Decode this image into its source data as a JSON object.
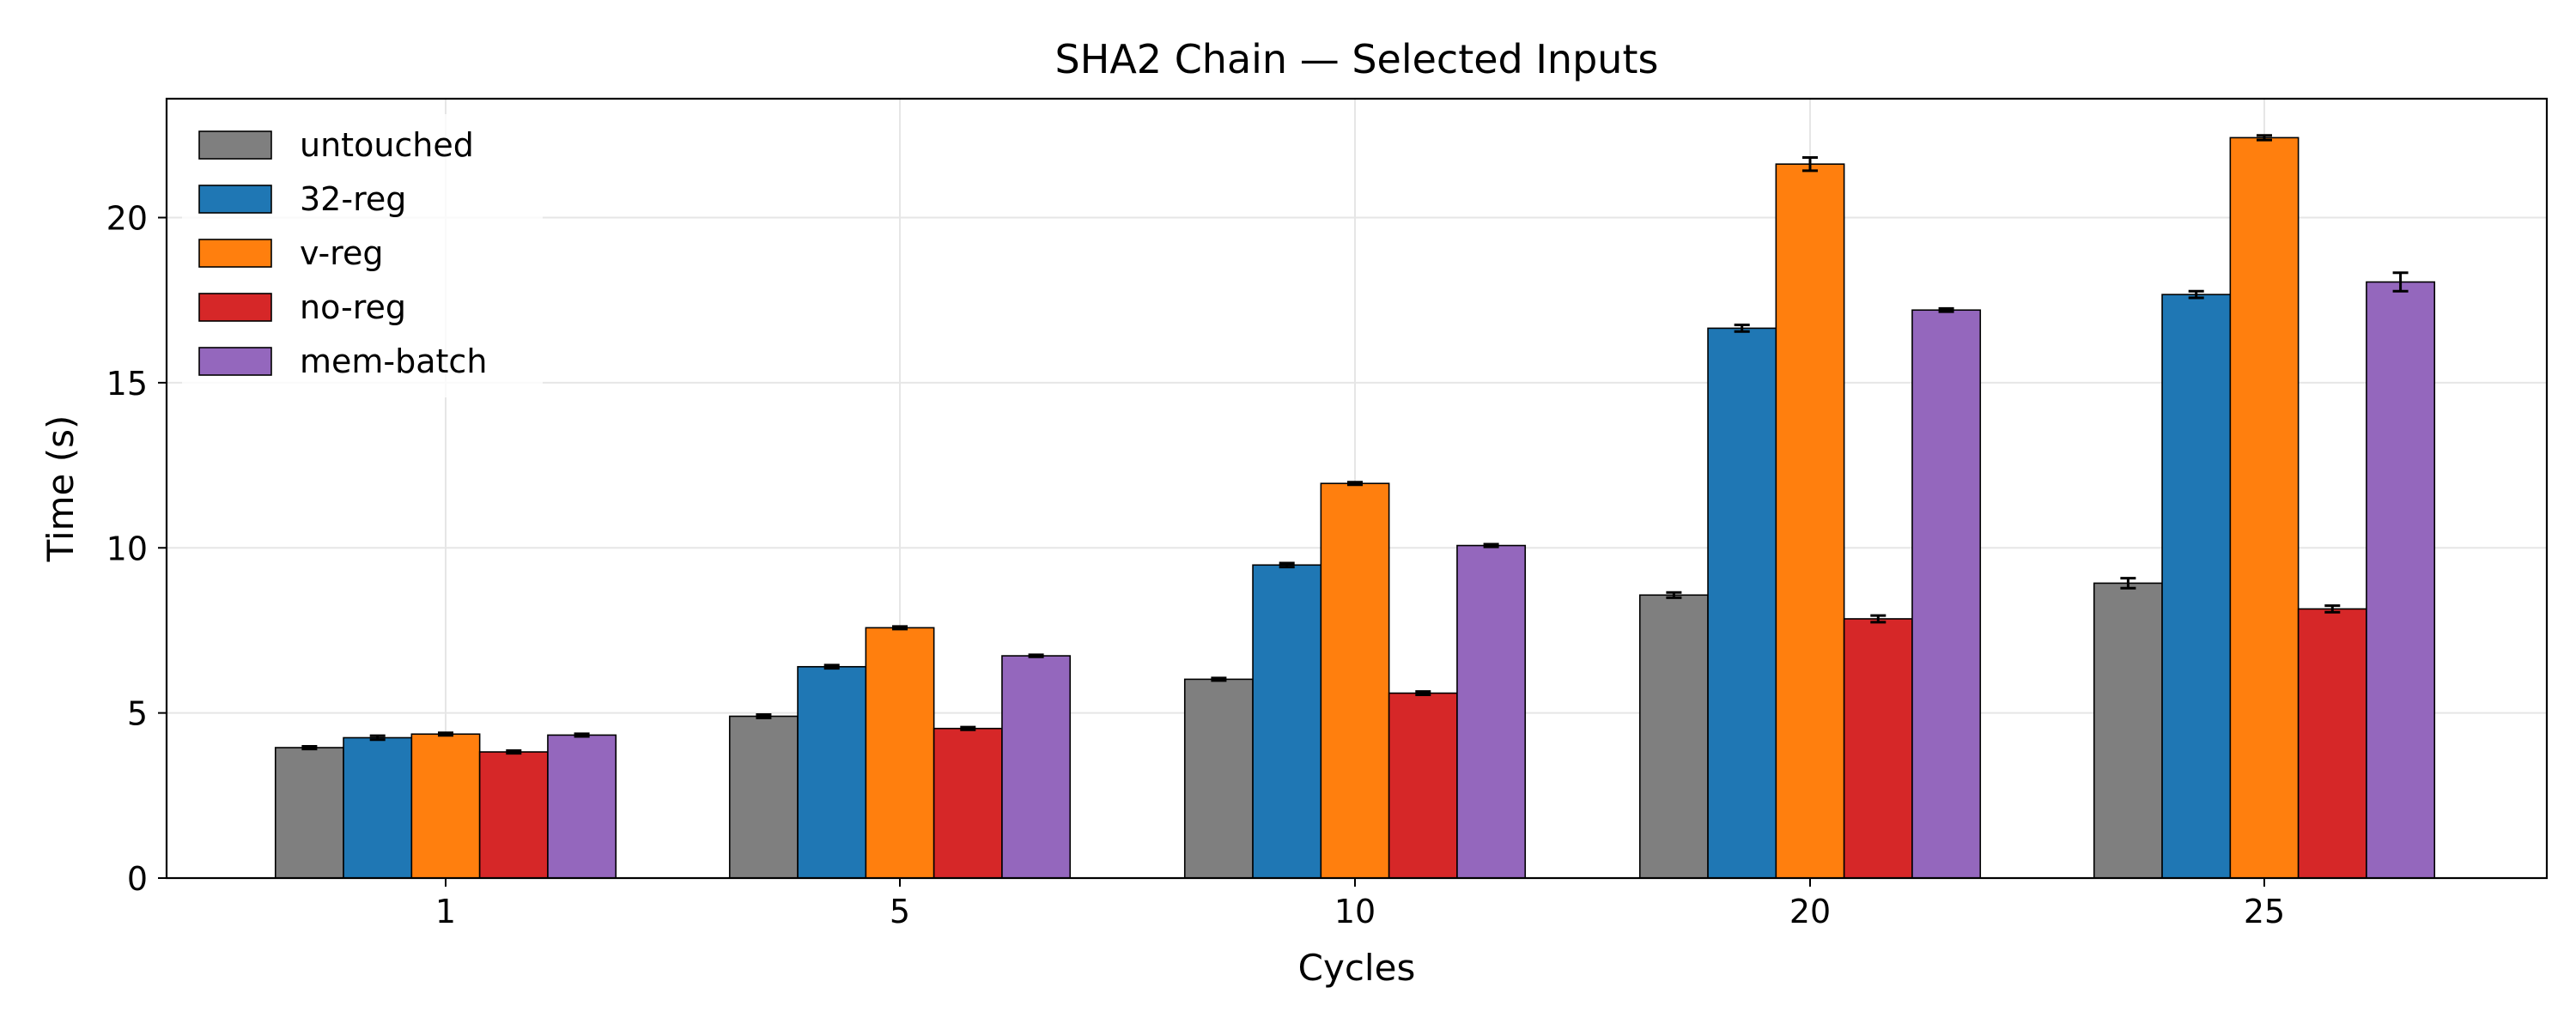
{
  "chart_data": {
    "type": "bar",
    "title": "SHA2 Chain — Selected Inputs",
    "xlabel": "Cycles",
    "ylabel": "Time (s)",
    "categories": [
      "1",
      "5",
      "10",
      "20",
      "25"
    ],
    "ylim": [
      0,
      23.6
    ],
    "yticks": [
      0,
      5,
      10,
      15,
      20
    ],
    "grid": true,
    "legend_position": "top-left",
    "series": [
      {
        "name": "untouched",
        "color": "#7f7f7f",
        "values": [
          3.95,
          4.9,
          6.02,
          8.57,
          8.93
        ],
        "errors": [
          0.04,
          0.05,
          0.04,
          0.08,
          0.15
        ]
      },
      {
        "name": "32-reg",
        "color": "#1f77b4",
        "values": [
          4.25,
          6.4,
          9.48,
          16.65,
          17.67
        ],
        "errors": [
          0.06,
          0.05,
          0.06,
          0.1,
          0.1
        ]
      },
      {
        "name": "v-reg",
        "color": "#ff7f0e",
        "values": [
          4.36,
          7.58,
          11.95,
          21.62,
          22.42
        ],
        "errors": [
          0.04,
          0.04,
          0.04,
          0.2,
          0.07
        ]
      },
      {
        "name": "no-reg",
        "color": "#d62728",
        "values": [
          3.82,
          4.53,
          5.6,
          7.85,
          8.15
        ],
        "errors": [
          0.04,
          0.04,
          0.05,
          0.1,
          0.1
        ]
      },
      {
        "name": "mem-batch",
        "color": "#9467bd",
        "values": [
          4.33,
          6.73,
          10.07,
          17.2,
          18.05
        ],
        "errors": [
          0.04,
          0.03,
          0.04,
          0.05,
          0.28
        ]
      }
    ]
  }
}
